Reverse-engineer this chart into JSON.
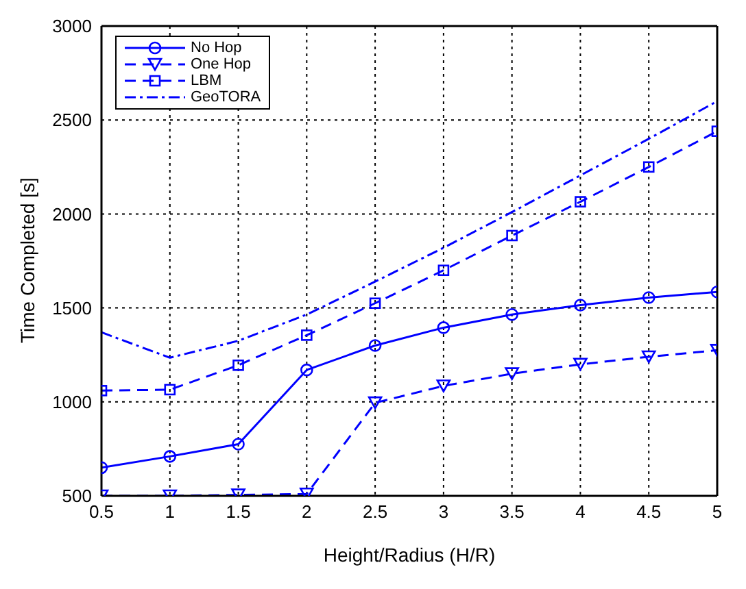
{
  "chart_data": {
    "type": "line",
    "xlabel": "Height/Radius (H/R)",
    "ylabel": "Time Completed [s]",
    "x": [
      0.5,
      1,
      1.5,
      2,
      2.5,
      3,
      3.5,
      4,
      4.5,
      5
    ],
    "xlim": [
      0.5,
      5
    ],
    "xticks": [
      0.5,
      1,
      1.5,
      2,
      2.5,
      3,
      3.5,
      4,
      4.5,
      5
    ],
    "ylim": [
      500,
      3000
    ],
    "yticks": [
      500,
      1000,
      1500,
      2000,
      2500,
      3000
    ],
    "grid": true,
    "legend": "top left",
    "series": [
      {
        "name": "No Hop",
        "color": "#0000ff",
        "marker": "circle",
        "line_style": "solid",
        "values": [
          650,
          710,
          775,
          1170,
          1300,
          1395,
          1465,
          1515,
          1555,
          1585
        ]
      },
      {
        "name": "One Hop",
        "color": "#0000ff",
        "marker": "triangle",
        "line_style": "dashed",
        "values": [
          500,
          500,
          505,
          510,
          995,
          1085,
          1150,
          1200,
          1240,
          1275
        ]
      },
      {
        "name": "LBM",
        "color": "#0000ff",
        "marker": "square",
        "line_style": "dashed",
        "values": [
          1060,
          1065,
          1195,
          1355,
          1525,
          1700,
          1885,
          2065,
          2250,
          2440
        ]
      },
      {
        "name": "GeoTORA",
        "color": "#0000ff",
        "marker": "none",
        "line_style": "dashdot",
        "values": [
          1370,
          1235,
          1325,
          1465,
          1640,
          1820,
          2010,
          2205,
          2400,
          2600
        ]
      }
    ]
  }
}
